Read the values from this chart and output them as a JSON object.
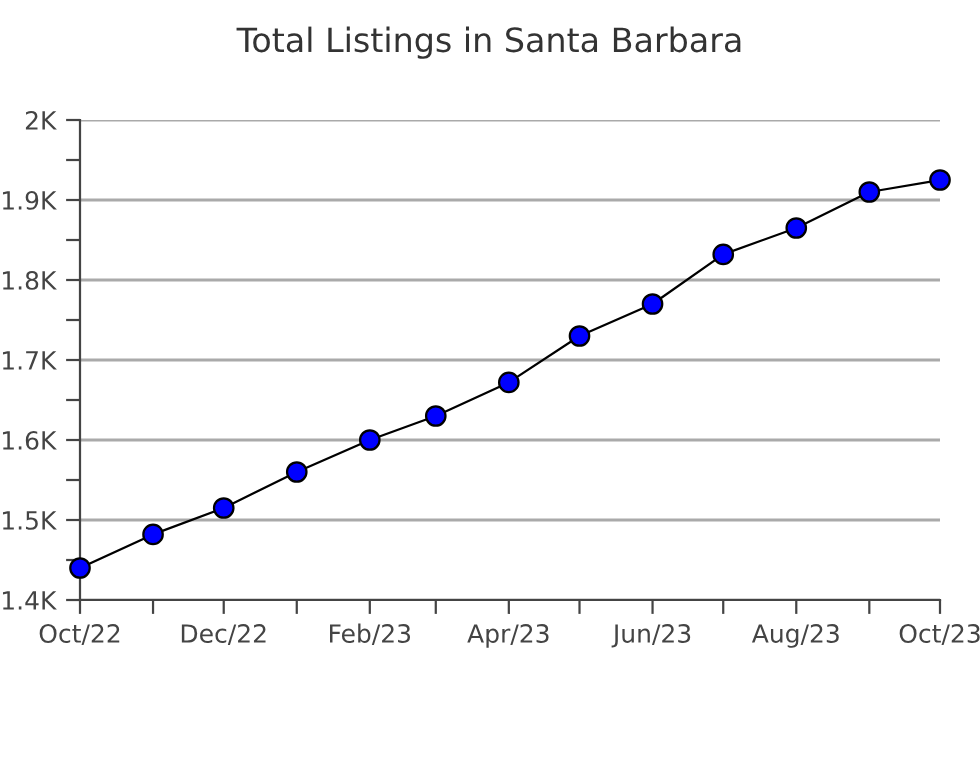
{
  "chart_data": {
    "type": "line",
    "title": "Total Listings in Santa Barbara",
    "x": [
      "2022-10",
      "2022-11",
      "2022-12",
      "2023-01",
      "2023-02",
      "2023-03",
      "2023-04",
      "2023-05",
      "2023-06",
      "2023-07",
      "2023-08",
      "2023-09",
      "2023-10"
    ],
    "series": [
      {
        "color": "#0000ff",
        "values": [
          1440,
          1482,
          1515,
          1560,
          1600,
          1630,
          1672,
          1730,
          1770,
          1832,
          1865,
          1910,
          1925
        ]
      }
    ],
    "xlim": [
      "2022-10",
      "2023-10"
    ],
    "xticks": [
      {
        "value": "2022-10",
        "label": "Oct/22"
      },
      {
        "value": "2022-11",
        "label": null
      },
      {
        "value": "2022-12",
        "label": "Dec/22"
      },
      {
        "value": "2023-01",
        "label": null
      },
      {
        "value": "2023-02",
        "label": "Feb/23"
      },
      {
        "value": "2023-03",
        "label": null
      },
      {
        "value": "2023-04",
        "label": "Apr/23"
      },
      {
        "value": "2023-05",
        "label": null
      },
      {
        "value": "2023-06",
        "label": "Jun/23"
      },
      {
        "value": "2023-07",
        "label": null
      },
      {
        "value": "2023-08",
        "label": "Aug/23"
      },
      {
        "value": "2023-09",
        "label": null
      },
      {
        "value": "2023-10",
        "label": "Oct/23"
      }
    ],
    "ylim": [
      1400,
      2000
    ],
    "yticks": [
      {
        "value": 1400,
        "label": "1.4K"
      },
      {
        "value": 1450,
        "label": null
      },
      {
        "value": 1500,
        "label": "1.5K"
      },
      {
        "value": 1550,
        "label": null
      },
      {
        "value": 1600,
        "label": "1.6K"
      },
      {
        "value": 1650,
        "label": null
      },
      {
        "value": 1700,
        "label": "1.7K"
      },
      {
        "value": 1750,
        "label": null
      },
      {
        "value": 1800,
        "label": "1.8K"
      },
      {
        "value": 1850,
        "label": null
      },
      {
        "value": 1900,
        "label": "1.9K"
      },
      {
        "value": 1950,
        "label": null
      },
      {
        "value": 2000,
        "label": "2K"
      }
    ],
    "grid": "y",
    "marker": "circle",
    "line_style": "solid",
    "legend": false
  }
}
